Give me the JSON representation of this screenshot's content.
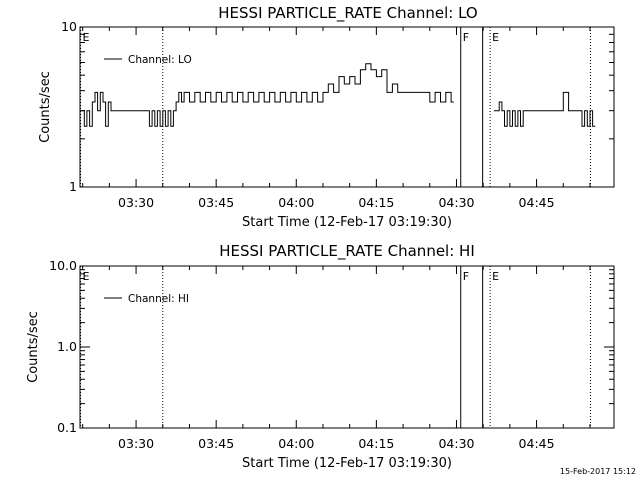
{
  "chart_data": [
    {
      "type": "line",
      "title": "HESSI PARTICLE_RATE Channel: LO",
      "xlabel": "Start Time (12-Feb-17 03:19:30)",
      "ylabel": "Counts/sec",
      "y_scale": "log",
      "ylim": [
        1,
        10
      ],
      "y_ticks": [
        1,
        10
      ],
      "y_tick_labels": [
        "1",
        "10"
      ],
      "x_tick_labels": [
        "03:30",
        "03:45",
        "04:00",
        "04:15",
        "04:30",
        "04:45"
      ],
      "x_tick_minutes": [
        30,
        45,
        60,
        75,
        90,
        105
      ],
      "x_range_minutes": [
        19.5,
        119.5
      ],
      "legend": "top-left",
      "series": [
        {
          "name": "Channel: LO",
          "x": [
            19.8,
            20.3,
            20.8,
            21.3,
            21.8,
            22.3,
            22.8,
            23.3,
            23.8,
            24.3,
            24.8,
            25.3,
            26.0,
            27.0,
            28.0,
            29.0,
            30.0,
            31.0,
            32.0,
            32.5,
            33.0,
            33.5,
            34.0,
            34.5,
            35.0,
            35.5,
            36.0,
            36.5,
            37.0,
            37.5,
            38.0,
            38.5,
            39.0,
            40.0,
            41.0,
            42.0,
            43.0,
            44.0,
            45.0,
            46.0,
            47.0,
            48.0,
            49.0,
            50.0,
            51.0,
            52.0,
            53.0,
            54.0,
            55.0,
            56.0,
            57.0,
            58.0,
            59.0,
            60.0,
            61.0,
            62.0,
            63.0,
            64.0,
            65.0,
            66.0,
            67.0,
            68.0,
            69.0,
            70.0,
            71.0,
            72.0,
            73.0,
            74.0,
            75.0,
            76.0,
            77.0,
            78.0,
            79.0,
            80.0,
            81.0,
            82.0,
            83.0,
            84.0,
            85.0,
            86.0,
            87.0,
            88.0,
            89.0
          ],
          "values": [
            3.0,
            2.4,
            3.0,
            2.4,
            3.4,
            3.9,
            3.0,
            3.9,
            3.4,
            2.4,
            3.4,
            3.0,
            3.0,
            3.0,
            3.0,
            3.0,
            3.0,
            3.0,
            3.0,
            2.4,
            3.0,
            2.4,
            3.0,
            2.4,
            3.0,
            2.4,
            3.0,
            2.4,
            3.0,
            3.4,
            3.9,
            3.4,
            3.9,
            3.4,
            3.9,
            3.4,
            3.9,
            3.4,
            3.9,
            3.4,
            3.9,
            3.4,
            3.9,
            3.4,
            3.9,
            3.4,
            3.9,
            3.4,
            3.9,
            3.4,
            3.9,
            3.4,
            3.9,
            3.4,
            3.9,
            3.4,
            3.9,
            3.4,
            3.9,
            4.4,
            3.9,
            4.9,
            4.4,
            4.9,
            4.4,
            5.4,
            5.9,
            5.4,
            4.9,
            5.4,
            3.9,
            4.4,
            3.9,
            3.9,
            3.9,
            3.9,
            3.9,
            3.9,
            3.4,
            3.9,
            3.4,
            3.9,
            3.4
          ]
        },
        {
          "name": "Channel: LO",
          "x": [
            97.0,
            97.5,
            98.0,
            98.5,
            99.0,
            99.5,
            100.0,
            100.5,
            101.0,
            101.5,
            102.0,
            102.5,
            103.0,
            104.0,
            105.0,
            106.0,
            107.0,
            108.0,
            109.0,
            110.0,
            111.0,
            112.0,
            113.0,
            113.5,
            114.0,
            114.5,
            115.0,
            115.5
          ],
          "values": [
            3.0,
            3.0,
            3.4,
            3.0,
            2.4,
            3.0,
            2.4,
            3.0,
            2.4,
            3.0,
            2.4,
            3.0,
            3.0,
            3.0,
            3.0,
            3.0,
            3.0,
            3.0,
            3.0,
            3.9,
            3.0,
            3.0,
            3.0,
            2.4,
            3.0,
            2.4,
            3.0,
            2.4
          ]
        }
      ],
      "event_markers": [
        {
          "label": "E",
          "minute": 19.6,
          "style": "dotted"
        },
        {
          "label": "",
          "minute": 35.0,
          "style": "dotted"
        },
        {
          "label": "F",
          "minute": 90.8,
          "style": "solid"
        },
        {
          "label": "",
          "minute": 94.9,
          "style": "solid"
        },
        {
          "label": "E",
          "minute": 96.3,
          "style": "dotted"
        },
        {
          "label": "",
          "minute": 115.1,
          "style": "dotted"
        }
      ],
      "grid": false
    },
    {
      "type": "line",
      "title": "HESSI PARTICLE_RATE Channel: HI",
      "xlabel": "Start Time (12-Feb-17 03:19:30)",
      "ylabel": "Counts/sec",
      "y_scale": "log",
      "ylim": [
        0.1,
        10
      ],
      "y_ticks": [
        0.1,
        1,
        10
      ],
      "y_tick_labels": [
        "0.1",
        "1.0",
        "10.0"
      ],
      "x_tick_labels": [
        "03:30",
        "03:45",
        "04:00",
        "04:15",
        "04:30",
        "04:45"
      ],
      "x_tick_minutes": [
        30,
        45,
        60,
        75,
        90,
        105
      ],
      "x_range_minutes": [
        19.5,
        119.5
      ],
      "legend": "top-left",
      "series": [
        {
          "name": "Channel: HI",
          "x": [],
          "values": []
        }
      ],
      "event_markers": [
        {
          "label": "E",
          "minute": 19.6,
          "style": "dotted"
        },
        {
          "label": "",
          "minute": 35.0,
          "style": "dotted"
        },
        {
          "label": "F",
          "minute": 90.8,
          "style": "solid"
        },
        {
          "label": "",
          "minute": 94.9,
          "style": "solid"
        },
        {
          "label": "E",
          "minute": 96.3,
          "style": "dotted"
        },
        {
          "label": "",
          "minute": 115.1,
          "style": "dotted"
        }
      ],
      "grid": false
    }
  ],
  "footer": {
    "timestamp": "15-Feb-2017 15:12"
  }
}
